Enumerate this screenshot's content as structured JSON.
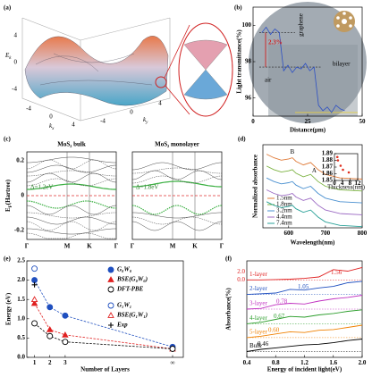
{
  "figure_a": {
    "label": "(a)",
    "ek": "E",
    "ek_sub": "k",
    "kx": "k",
    "kx_sub": "x",
    "ky": "k",
    "ky_sub": "y",
    "ek_ticks": [
      "4",
      "0",
      "-4"
    ],
    "kx_ticks": [
      "-4",
      "0",
      "4"
    ],
    "ky_ticks": [
      "-4",
      "0",
      "4"
    ]
  },
  "figure_c": {
    "label": "(c)",
    "bulk_title": "MoS₂ bulk",
    "mono_title": "MoS₂ monolayer",
    "ylabel": "E",
    "ylabel_sub": "F",
    "ylabel_rest": "(Hartree)",
    "gap_bulk": "Δ=1.2eV",
    "gap_mono": "Δ=1.8eV",
    "kpoints": [
      "Γ",
      "M",
      "K",
      "Γ"
    ],
    "yticks": [
      "0.2",
      "0",
      "-0.2"
    ]
  },
  "chart_data": [
    {
      "type": "line",
      "label": "(b)",
      "xlabel": "Distance(μm)",
      "ylabel": "Light transmittance(%)",
      "x": [
        4,
        6,
        8,
        10,
        12,
        14,
        16,
        18,
        20,
        22,
        24,
        26,
        28,
        30,
        32,
        34,
        36,
        38,
        40,
        42
      ],
      "values": [
        99.6,
        99.9,
        99.5,
        99.8,
        99.6,
        97.5,
        97.8,
        97.4,
        97.7,
        97.6,
        97.9,
        97.5,
        97.7,
        95.6,
        95.3,
        95.5,
        95.2,
        95.6,
        95.4,
        95.3
      ],
      "color": "#2c4fc4",
      "xlim": [
        0,
        50
      ],
      "ylim": [
        95,
        101
      ],
      "xticks": [
        0,
        25,
        50
      ],
      "yticks": [
        96,
        98,
        100
      ],
      "annotations": [
        "2.3%",
        "graphene",
        "air",
        "bilayer"
      ]
    },
    {
      "type": "line",
      "label": "(d)",
      "xlabel": "Wavelength(nm)",
      "ylabel": "Normalized absorbance",
      "x": [
        540,
        560,
        580,
        600,
        610,
        620,
        640,
        660,
        680,
        700,
        740,
        800
      ],
      "xlim": [
        530,
        800
      ],
      "ylim": [
        0,
        7
      ],
      "xticks": [
        600,
        700,
        800
      ],
      "series": [
        {
          "name": "1.5nm",
          "color": "#e07b39",
          "values": [
            6.2,
            5.9,
            5.7,
            5.8,
            5.9,
            5.6,
            5.3,
            5.5,
            4.9,
            4.5,
            4.2,
            4.1
          ]
        },
        {
          "name": "1.8nm",
          "color": "#7cb342",
          "values": [
            5.2,
            4.9,
            4.7,
            4.8,
            4.9,
            4.6,
            4.3,
            4.5,
            3.9,
            3.5,
            3.2,
            3.1
          ]
        },
        {
          "name": "3.2nm",
          "color": "#4a90d0",
          "values": [
            4.2,
            3.9,
            3.7,
            3.8,
            3.9,
            3.6,
            3.3,
            3.5,
            2.9,
            2.5,
            2.2,
            2.1
          ]
        },
        {
          "name": "4.4nm",
          "color": "#9c6bc4",
          "values": [
            3.2,
            2.9,
            2.7,
            2.8,
            2.9,
            2.6,
            2.3,
            2.5,
            1.9,
            1.5,
            1.2,
            1.1
          ]
        },
        {
          "name": "7.4nm",
          "color": "#2aa198",
          "values": [
            2.2,
            1.9,
            1.7,
            1.8,
            1.9,
            1.6,
            1.3,
            1.5,
            0.9,
            0.5,
            0.2,
            0.1
          ]
        }
      ],
      "annotations": [
        "B",
        "A"
      ]
    },
    {
      "type": "scatter",
      "xlabel": "Thickness(nm)",
      "x": [
        1.5,
        1.8,
        3.2,
        4.4,
        7.4
      ],
      "values": [
        1.885,
        1.88,
        1.872,
        1.866,
        1.862
      ],
      "color": "#e03020",
      "xlim": [
        0,
        12
      ],
      "ylim": [
        1.85,
        1.89
      ],
      "xticks": [
        0,
        4,
        8,
        12
      ],
      "yticks": [
        1.85,
        1.86,
        1.87,
        1.88,
        1.89
      ]
    },
    {
      "type": "line",
      "label": "(e)",
      "xlabel": "Number of Layers",
      "ylabel": "Energy (eV)",
      "x": [
        1,
        2,
        3,
        10
      ],
      "xlim": [
        0.5,
        10.7
      ],
      "ylim": [
        0,
        2.5
      ],
      "xticks": [
        1,
        2,
        3,
        {
          "value": 10,
          "label": "∞"
        }
      ],
      "yticks": [
        {
          "value": 0,
          "label": "0.0"
        },
        0.5,
        {
          "value": 1,
          "label": "1.0"
        },
        1.5,
        {
          "value": 2,
          "label": "2.0"
        },
        2.5
      ],
      "series": [
        {
          "name": "G₀W₀",
          "color": "#1f4fbf",
          "marker": "circle",
          "filled": true,
          "dashed": true,
          "values": [
            2.0,
            1.3,
            1.08,
            0.27
          ]
        },
        {
          "name": "BSE(G₀W₀)",
          "color": "#e02020",
          "marker": "triangle",
          "filled": true,
          "dashed": true,
          "values": [
            1.4,
            0.72,
            0.58,
            0.22
          ]
        },
        {
          "name": "DFT-PBE",
          "color": "#000000",
          "marker": "circle",
          "filled": false,
          "dashed": true,
          "values": [
            0.88,
            0.55,
            0.4,
            0.22
          ]
        },
        {
          "name": "G₁W₁",
          "color": "#1f4fbf",
          "marker": "circle",
          "filled": false,
          "values": [
            2.3,
            null,
            null,
            null
          ]
        },
        {
          "name": "BSE(G₁W₁)",
          "color": "#e02020",
          "marker": "triangle",
          "filled": false,
          "values": [
            1.5,
            null,
            null,
            null
          ]
        },
        {
          "name": "Exp",
          "color": "#000000",
          "marker": "plus",
          "filled": false,
          "values": [
            1.88,
            null,
            null,
            null
          ]
        }
      ]
    },
    {
      "type": "line",
      "label": "(f)",
      "xlabel": "Energy of incident light(eV)",
      "ylabel": "Absorbance(%)",
      "x": [
        0.4,
        0.6,
        0.8,
        1.0,
        1.2,
        1.4,
        1.6,
        1.8,
        2.0
      ],
      "xlim": [
        0.4,
        2.0
      ],
      "ylim": [
        -0.3,
        6.3
      ],
      "xticks": [
        0.4,
        0.8,
        1.2,
        1.6,
        {
          "value": 2,
          "label": "2.0"
        }
      ],
      "series": [
        {
          "name": "1-layer",
          "color": "#e02020",
          "values": [
            5.0,
            5.0,
            5.02,
            5.05,
            5.1,
            5.2,
            5.7,
            5.6,
            5.85
          ]
        },
        {
          "name": "2-layer",
          "color": "#1f4fbf",
          "values": [
            4.0,
            4.05,
            4.1,
            4.35,
            4.3,
            4.45,
            4.55,
            4.8,
            4.9
          ]
        },
        {
          "name": "3-layer",
          "color": "#c030c0",
          "values": [
            3.0,
            3.05,
            3.3,
            3.4,
            3.35,
            3.55,
            3.7,
            3.8,
            3.95
          ]
        },
        {
          "name": "4-layer",
          "color": "#2a9d2a",
          "values": [
            2.0,
            2.1,
            2.3,
            2.5,
            2.45,
            2.6,
            2.7,
            2.85,
            2.95
          ]
        },
        {
          "name": "5-layer",
          "color": "#f08000",
          "values": [
            1.05,
            1.15,
            1.3,
            1.45,
            1.4,
            1.55,
            1.6,
            1.75,
            1.9
          ]
        },
        {
          "name": "Bulk",
          "color": "#000000",
          "values": [
            0.1,
            0.25,
            0.35,
            0.45,
            0.55,
            0.6,
            0.7,
            0.85,
            0.95
          ]
        }
      ],
      "peak_labels": [
        "1.56",
        "1.05",
        "0.78",
        "0.67",
        "0.60",
        "0.46"
      ],
      "offset_labels": [
        "2.0",
        "0.0"
      ]
    }
  ]
}
